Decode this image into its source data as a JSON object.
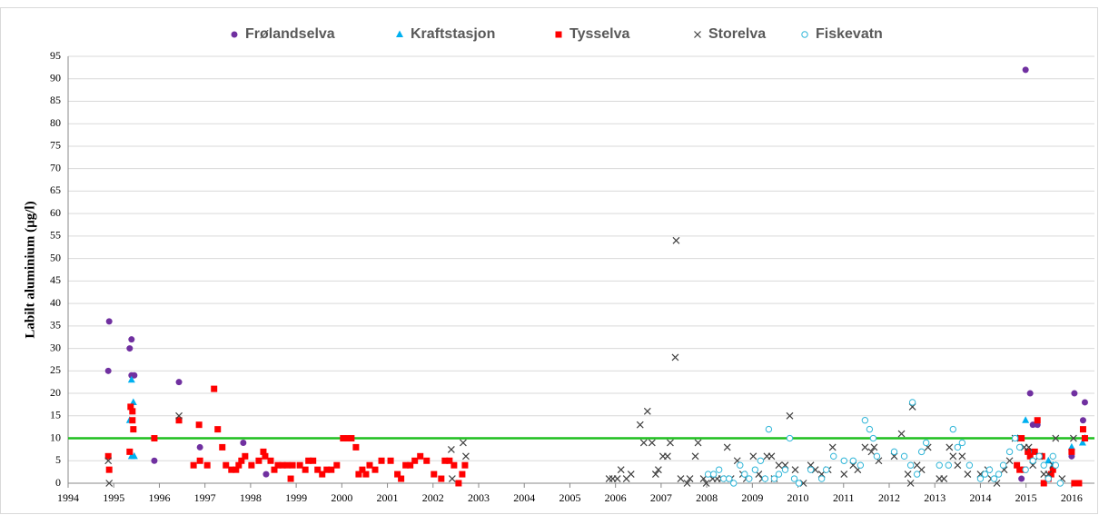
{
  "chart_data": {
    "type": "scatter",
    "y_label": "Labilt aluminium (µg/l)",
    "xlim": [
      1994,
      2016.5
    ],
    "xticks": [
      1994,
      1995,
      1996,
      1997,
      1998,
      1999,
      2000,
      2001,
      2002,
      2003,
      2004,
      2005,
      2006,
      2007,
      2008,
      2009,
      2010,
      2011,
      2012,
      2013,
      2014,
      2015,
      2016
    ],
    "ylim": [
      0,
      95
    ],
    "yticks": [
      0,
      5,
      10,
      15,
      20,
      25,
      30,
      35,
      40,
      45,
      50,
      55,
      60,
      65,
      70,
      75,
      80,
      85,
      90,
      95
    ],
    "grid": true,
    "legend": "top",
    "reference_line": {
      "value": 10,
      "color": "#1fbf1f"
    },
    "series": [
      {
        "name": "Frølandselva",
        "color": "#7030a0",
        "marker": "circle",
        "x": [
          1994.88,
          1994.9,
          1995.35,
          1995.39,
          1995.39,
          1995.45,
          1995.89,
          1996.43,
          1996.89,
          1997.84,
          1998.34,
          2014.9,
          2014.99,
          2015.09,
          2015.15,
          2015.25,
          2016.0,
          2016.06,
          2016.25,
          2016.29
        ],
        "values": [
          25,
          36,
          30,
          32,
          24,
          24,
          5,
          22.5,
          8,
          9,
          2,
          1,
          92,
          20,
          13,
          13,
          6,
          20,
          14,
          18
        ]
      },
      {
        "name": "Kraftstasjon",
        "color": "#00b0f0",
        "marker": "triangle",
        "x": [
          1995.39,
          1995.43,
          1995.35,
          1995.39,
          1995.45,
          2014.82,
          2014.99,
          2015.09,
          2015.49,
          2015.59,
          2016.0,
          2016.24,
          2016.29
        ],
        "values": [
          23,
          18,
          14,
          6,
          6,
          10,
          14,
          7,
          5,
          4,
          8,
          9,
          10
        ]
      },
      {
        "name": "Tysselva",
        "color": "#ff0000",
        "marker": "square",
        "x": [
          1994.88,
          1994.9,
          1995.35,
          1995.37,
          1995.41,
          1995.41,
          1995.43,
          1995.89,
          1996.43,
          1996.75,
          1996.87,
          1996.89,
          1997.05,
          1997.2,
          1997.28,
          1997.38,
          1997.46,
          1997.58,
          1997.68,
          1997.74,
          1997.8,
          1997.88,
          1998.02,
          1998.18,
          1998.28,
          1998.32,
          1998.44,
          1998.52,
          1998.6,
          1998.7,
          1998.8,
          1998.88,
          1998.92,
          1999.08,
          1999.2,
          1999.27,
          1999.37,
          1999.47,
          1999.57,
          1999.67,
          1999.77,
          1999.89,
          2000.03,
          2000.13,
          2000.21,
          2000.31,
          2000.37,
          2000.45,
          2000.53,
          2000.61,
          2000.73,
          2000.87,
          2001.07,
          2001.22,
          2001.3,
          2001.4,
          2001.5,
          2001.6,
          2001.72,
          2001.86,
          2002.02,
          2002.18,
          2002.26,
          2002.36,
          2002.46,
          2002.56,
          2002.64,
          2002.7,
          2014.8,
          2014.86,
          2014.9,
          2014.96,
          2015.04,
          2015.09,
          2015.19,
          2015.25,
          2015.35,
          2015.39,
          2015.49,
          2015.55,
          2015.59,
          2016.0,
          2016.06,
          2016.16,
          2016.25,
          2016.29
        ],
        "values": [
          6,
          3,
          7,
          17,
          16,
          14,
          12,
          10,
          14,
          4,
          13,
          5,
          4,
          21,
          12,
          8,
          4,
          3,
          3,
          4,
          5,
          6,
          4,
          5,
          7,
          6,
          5,
          3,
          4,
          4,
          4,
          1,
          4,
          4,
          3,
          5,
          5,
          3,
          2,
          3,
          3,
          4,
          10,
          10,
          10,
          8,
          2,
          3,
          2,
          4,
          3,
          5,
          5,
          2,
          1,
          4,
          4,
          5,
          6,
          5,
          2,
          1,
          5,
          5,
          4,
          0,
          2,
          4,
          4,
          3,
          10,
          3,
          7,
          6,
          7,
          14,
          6,
          0,
          1,
          2,
          3,
          7,
          0,
          0,
          12,
          10
        ]
      },
      {
        "name": "Storelva",
        "color": "#404040",
        "marker": "x",
        "x": [
          1994.88,
          1994.9,
          1996.43,
          2002.4,
          2002.42,
          2002.66,
          2002.72,
          2005.86,
          2005.94,
          2006.04,
          2006.12,
          2006.24,
          2006.34,
          2006.54,
          2006.62,
          2006.7,
          2006.8,
          2006.88,
          2006.94,
          2007.04,
          2007.14,
          2007.2,
          2007.33,
          2007.31,
          2007.43,
          2007.57,
          2007.63,
          2007.75,
          2007.81,
          2007.93,
          2007.99,
          2008.13,
          2008.23,
          2008.33,
          2008.45,
          2008.53,
          2008.67,
          2008.79,
          2008.87,
          2009.02,
          2009.14,
          2009.22,
          2009.32,
          2009.42,
          2009.48,
          2009.58,
          2009.72,
          2009.82,
          2009.94,
          2010.12,
          2010.28,
          2010.38,
          2010.52,
          2010.66,
          2010.76,
          2011.01,
          2011.21,
          2011.31,
          2011.47,
          2011.61,
          2011.67,
          2011.77,
          2012.11,
          2012.27,
          2012.41,
          2012.47,
          2012.51,
          2012.61,
          2012.71,
          2012.85,
          2013.1,
          2013.2,
          2013.32,
          2013.4,
          2013.5,
          2013.6,
          2013.72,
          2014.0,
          2014.16,
          2014.24,
          2014.36,
          2014.52,
          2014.64,
          2014.76,
          2014.96,
          2015.06,
          2015.15,
          2015.29,
          2015.39,
          2015.49,
          2015.59,
          2015.65,
          2015.79,
          2016.04
        ],
        "values": [
          5,
          0,
          15,
          7.5,
          1,
          9,
          6,
          1,
          1,
          1,
          3,
          1,
          2,
          13,
          9,
          16,
          9,
          2,
          3,
          6,
          6,
          9,
          54,
          28,
          1,
          0,
          1,
          6,
          9,
          1,
          0,
          1,
          1,
          1,
          8,
          1,
          5,
          2,
          1,
          6,
          2,
          1,
          6,
          6,
          1,
          4,
          4,
          15,
          3,
          0,
          4,
          3,
          2,
          3,
          8,
          2,
          4,
          3,
          8,
          7,
          8,
          5,
          6,
          11,
          2,
          0,
          17,
          4,
          3,
          8,
          1,
          1,
          8,
          6,
          4,
          6,
          2,
          2,
          3,
          1,
          0,
          3,
          5,
          10,
          8,
          8,
          4,
          6,
          2,
          2,
          4,
          10,
          1,
          10
        ]
      },
      {
        "name": "Fiskevatn",
        "color": "#31b6d8",
        "marker": "open-circle",
        "x": [
          2008.03,
          2008.15,
          2008.27,
          2008.37,
          2008.49,
          2008.59,
          2008.73,
          2008.83,
          2008.93,
          2009.06,
          2009.18,
          2009.28,
          2009.36,
          2009.48,
          2009.58,
          2009.72,
          2009.82,
          2009.92,
          2010.02,
          2010.28,
          2010.52,
          2010.62,
          2010.78,
          2011.01,
          2011.21,
          2011.37,
          2011.47,
          2011.57,
          2011.65,
          2011.73,
          2012.11,
          2012.33,
          2012.47,
          2012.51,
          2012.61,
          2012.71,
          2012.81,
          2013.1,
          2013.3,
          2013.4,
          2013.5,
          2013.6,
          2013.76,
          2014.0,
          2014.1,
          2014.2,
          2014.3,
          2014.4,
          2014.5,
          2014.64,
          2014.76,
          2014.86,
          2014.99,
          2015.15,
          2015.29,
          2015.39,
          2015.49,
          2015.59,
          2015.65,
          2015.75
        ],
        "values": [
          2,
          2,
          3,
          1,
          1,
          0,
          4,
          2,
          1,
          3,
          5,
          1,
          12,
          1,
          2,
          3,
          10,
          1,
          0,
          3,
          1,
          3,
          6,
          5,
          5,
          4,
          14,
          12,
          10,
          6,
          7,
          6,
          4,
          18,
          2,
          7,
          9,
          4,
          4,
          12,
          8,
          9,
          4,
          1,
          2,
          3,
          1,
          2,
          4,
          7,
          10,
          8,
          3,
          5,
          6,
          4,
          1,
          6,
          4,
          0
        ]
      }
    ]
  }
}
